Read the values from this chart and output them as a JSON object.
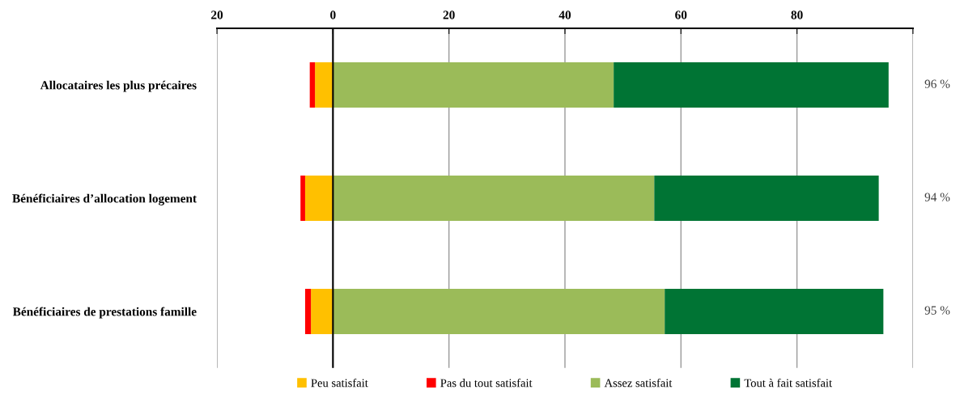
{
  "chart_data": {
    "type": "bar",
    "orientation": "horizontal",
    "stacked": true,
    "categories": [
      "Allocataires les plus précaires",
      "Bénéficiaires d’allocation logement",
      "Bénéficiaires de prestations famille"
    ],
    "series": [
      {
        "name": "Peu satisfait",
        "color": "#ffc000",
        "values": [
          -3.1,
          -4.8,
          -3.8
        ]
      },
      {
        "name": "Pas du tout satisfait",
        "color": "#ff0000",
        "values": [
          -0.9,
          -0.8,
          -1.0
        ]
      },
      {
        "name": "Assez satisfait",
        "color": "#9bbb59",
        "values": [
          48.4,
          55.4,
          57.2
        ]
      },
      {
        "name": "Tout à fait satisfait",
        "color": "#007434",
        "values": [
          47.4,
          38.7,
          37.7
        ]
      }
    ],
    "xlim": [
      -20,
      100
    ],
    "xticks": [
      {
        "value": -20,
        "label": "20"
      },
      0,
      20,
      40,
      60,
      80,
      {
        "value": 100,
        "label": null
      }
    ],
    "annotations": [
      "96 %",
      "94 %",
      "95 %"
    ],
    "ref_lines": [
      {
        "axis": "x",
        "value": 0,
        "color": "#000000"
      }
    ],
    "grid": "x",
    "legend": "bottom"
  }
}
